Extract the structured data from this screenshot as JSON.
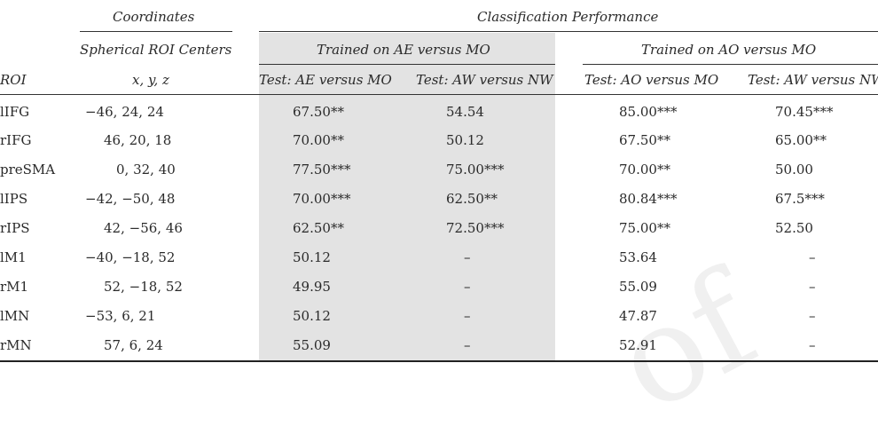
{
  "header": {
    "coordinates": "Coordinates",
    "classification_performance": "Classification Performance",
    "spherical_roi_centers": "Spherical ROI Centers",
    "trained_ae_mo": "Trained on AE versus MO",
    "trained_ao_mo": "Trained on AO versus MO",
    "col_roi": "ROI",
    "col_xyz": "x, y, z",
    "col_test1": "Test: AE versus MO",
    "col_test2": "Test: AW versus NW",
    "col_test3": "Test: AO versus MO",
    "col_test4": "Test: AW versus NW"
  },
  "rows": [
    {
      "roi": "lIFG",
      "xyz": "−46, 24, 24",
      "c1": "67.50**",
      "c2": "54.54",
      "c3": "85.00***",
      "c4": "70.45***"
    },
    {
      "roi": "rIFG",
      "xyz": "46, 20, 18",
      "c1": "70.00**",
      "c2": "50.12",
      "c3": "67.50**",
      "c4": "65.00**"
    },
    {
      "roi": "preSMA",
      "xyz": "0, 32, 40",
      "c1": "77.50***",
      "c2": "75.00***",
      "c3": "70.00**",
      "c4": "50.00"
    },
    {
      "roi": "lIPS",
      "xyz": "−42, −50, 48",
      "c1": "70.00***",
      "c2": "62.50**",
      "c3": "80.84***",
      "c4": "67.5***"
    },
    {
      "roi": "rIPS",
      "xyz": "42, −56, 46",
      "c1": "62.50**",
      "c2": "72.50***",
      "c3": "75.00**",
      "c4": "52.50"
    },
    {
      "roi": "lM1",
      "xyz": "−40, −18, 52",
      "c1": "50.12",
      "c2": "–",
      "c3": "53.64",
      "c4": "–"
    },
    {
      "roi": "rM1",
      "xyz": "52, −18, 52",
      "c1": "49.95",
      "c2": "–",
      "c3": "55.09",
      "c4": "–"
    },
    {
      "roi": "lMN",
      "xyz": "−53, 6, 21",
      "c1": "50.12",
      "c2": "–",
      "c3": "47.87",
      "c4": "–"
    },
    {
      "roi": "rMN",
      "xyz": "57, 6, 24",
      "c1": "55.09",
      "c2": "–",
      "c3": "52.91",
      "c4": "–"
    }
  ],
  "watermark": "of"
}
